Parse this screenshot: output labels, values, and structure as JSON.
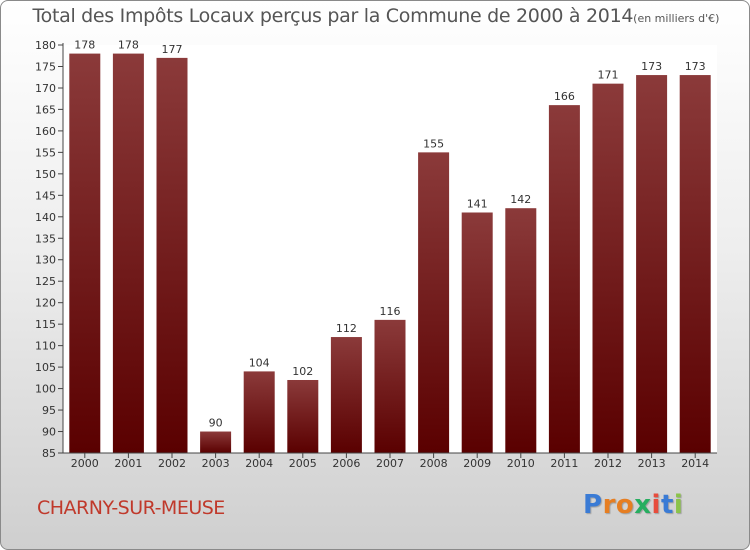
{
  "title": "Total des Impôts Locaux perçus par la Commune de 2000 à 2014",
  "subtitle": "(en milliers d'€)",
  "commune": "CHARNY-SUR-MEUSE",
  "logo": {
    "text": "Proxiti",
    "letters": [
      "P",
      "r",
      "o",
      "x",
      "i",
      "t",
      "i"
    ],
    "colors": [
      "#3a7bd5",
      "#e67e22",
      "#e67e22",
      "#27ae60",
      "#e74c3c",
      "#3a7bd5",
      "#8bc34a"
    ]
  },
  "colors": {
    "bar_dark": "#5a0000",
    "bar_light": "#8b3a3a",
    "title": "#555555",
    "commune": "#c0392b"
  },
  "chart_data": {
    "type": "bar",
    "categories": [
      "2000",
      "2001",
      "2002",
      "2003",
      "2004",
      "2005",
      "2006",
      "2007",
      "2008",
      "2009",
      "2010",
      "2011",
      "2012",
      "2013",
      "2014"
    ],
    "values": [
      178,
      178,
      177,
      90,
      104,
      102,
      112,
      116,
      155,
      141,
      142,
      166,
      171,
      173,
      173
    ],
    "ylim": [
      85,
      180
    ],
    "ytick_step": 5,
    "grid": false,
    "legend": "none"
  }
}
